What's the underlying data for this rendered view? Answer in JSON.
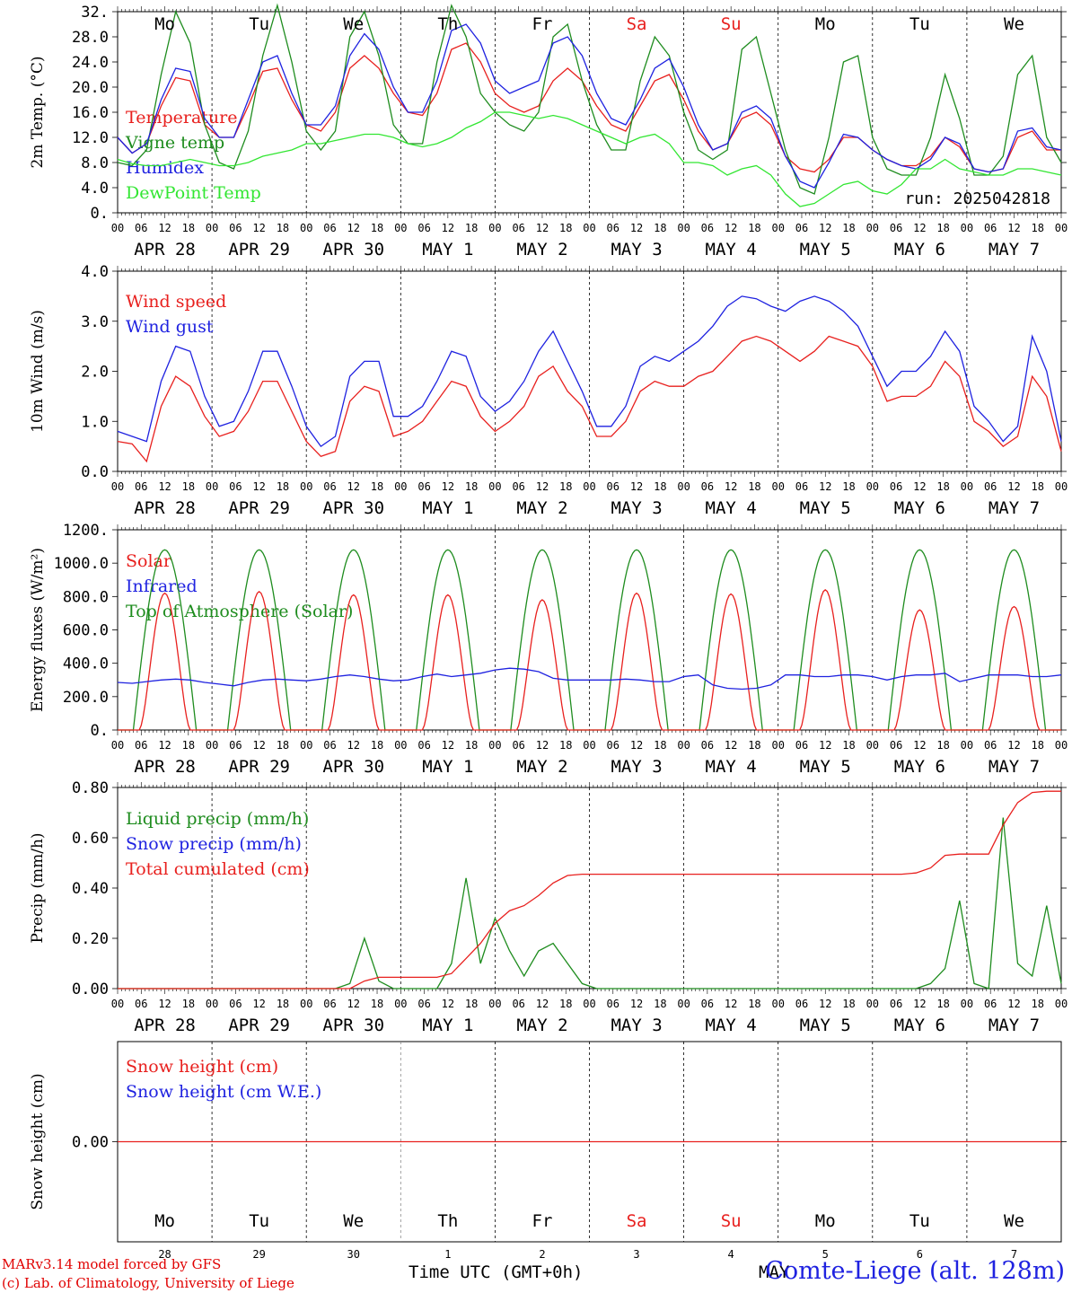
{
  "days": {
    "abbr": [
      "Mo",
      "Tu",
      "We",
      "Th",
      "Fr",
      "Sa",
      "Su",
      "Mo",
      "Tu",
      "We"
    ],
    "dates": [
      "APR 28",
      "APR 29",
      "APR 30",
      "MAY  1",
      "MAY  2",
      "MAY  3",
      "MAY  4",
      "MAY  5",
      "MAY  6",
      "MAY  7"
    ],
    "day_numbers": [
      "28",
      "29",
      "30",
      "1",
      "2",
      "3",
      "4",
      "5",
      "6",
      "7"
    ],
    "hour_ticks": [
      "00",
      "06",
      "12",
      "18"
    ],
    "final_tick": "00",
    "weekend_color": "#e8201e",
    "weekday_color": "#000000",
    "weekend_indices": [
      5,
      6
    ]
  },
  "footer": {
    "model_line": "MARv3.14 model forced by GFS",
    "credit_line": "(c) Lab. of Climatology, University of Liege",
    "x_title": "Time UTC (GMT+0h)",
    "month_word": "MAY",
    "station": "Comte-Liege (alt. 128m)"
  },
  "chart_data": [
    {
      "type": "line",
      "ylabel": "2m Temp. (°C)",
      "yticks": [
        "0.",
        "4.0",
        "8.0",
        "12.0",
        "16.0",
        "20.0",
        "24.0",
        "28.0",
        "32."
      ],
      "ylim": [
        0,
        32
      ],
      "annotation": "run: 2025042818",
      "legend_placement": "left",
      "series": [
        {
          "name": "Temperature",
          "color": "#e8201e",
          "values": [
            12,
            9.5,
            11,
            17,
            21.5,
            21,
            14,
            12,
            12,
            17,
            22.5,
            23,
            18,
            14,
            13,
            16,
            23,
            25,
            23,
            19,
            16,
            15.5,
            19,
            26,
            27,
            24,
            19,
            17,
            16,
            17,
            21,
            23,
            21,
            17,
            14,
            13,
            17,
            21,
            22,
            18,
            13,
            10,
            11,
            15,
            16,
            14,
            9,
            7,
            6.5,
            8.5,
            12,
            12,
            10,
            8.5,
            7.5,
            7.5,
            9,
            12,
            10.5,
            7,
            6.5,
            7,
            12,
            13,
            10,
            10
          ]
        },
        {
          "name": "Vigne temp",
          "color": "#1e8c1e",
          "values": [
            8,
            7.5,
            10,
            22,
            32,
            27,
            14,
            8,
            7,
            13,
            25,
            33,
            24,
            13,
            10,
            13,
            28,
            32,
            25,
            14,
            11,
            11,
            24,
            33,
            28,
            19,
            16,
            14,
            13,
            16,
            28,
            30,
            21,
            14,
            10,
            10,
            21,
            28,
            25,
            16,
            10,
            8.5,
            10,
            26,
            28,
            19,
            10,
            4,
            3,
            12,
            24,
            25,
            12,
            7,
            6,
            6,
            12,
            22,
            15,
            6,
            6,
            9,
            22,
            25,
            12,
            8
          ]
        },
        {
          "name": "Humidex",
          "color": "#1f22e0",
          "values": [
            12,
            9.5,
            11,
            18,
            23,
            22.5,
            15,
            12,
            12,
            18,
            24,
            25,
            19,
            14,
            14,
            17,
            25,
            28.5,
            26,
            20,
            16,
            16,
            21,
            29,
            30,
            27,
            21,
            19,
            20,
            21,
            27,
            28,
            25,
            19,
            15,
            14,
            18,
            23,
            24.5,
            20,
            14,
            10,
            11,
            16,
            17,
            15,
            9,
            5,
            4,
            8,
            12.5,
            12,
            10,
            8.5,
            7.5,
            7,
            8.5,
            12,
            11,
            7,
            6.5,
            7,
            13,
            13.5,
            10.5,
            10
          ]
        },
        {
          "name": "DewPoint Temp",
          "color": "#32e632",
          "values": [
            8.5,
            7.8,
            7.5,
            7.5,
            8,
            8.5,
            8,
            7.5,
            7.5,
            8,
            9,
            9.5,
            10,
            11,
            11,
            11.5,
            12,
            12.5,
            12.5,
            12,
            11,
            10.5,
            11,
            12,
            13.5,
            14.5,
            16,
            16,
            15.5,
            15,
            15.5,
            15,
            14,
            13,
            12,
            11,
            12,
            12.5,
            11,
            8,
            8,
            7.5,
            6,
            7,
            7.5,
            6,
            3,
            1,
            1.5,
            3,
            4.5,
            5,
            3.5,
            3,
            4.5,
            7,
            7,
            8.5,
            7,
            6.5,
            6,
            6,
            7,
            7,
            6.5,
            6
          ]
        }
      ]
    },
    {
      "type": "line",
      "ylabel": "10m Wind (m/s)",
      "yticks": [
        "0.0",
        "1.0",
        "2.0",
        "3.0",
        "4.0"
      ],
      "ylim": [
        0,
        4
      ],
      "legend_placement": "left",
      "series": [
        {
          "name": "Wind speed",
          "color": "#e8201e",
          "values": [
            0.6,
            0.55,
            0.2,
            1.3,
            1.9,
            1.7,
            1.1,
            0.7,
            0.8,
            1.2,
            1.8,
            1.8,
            1.2,
            0.6,
            0.3,
            0.4,
            1.4,
            1.7,
            1.6,
            0.7,
            0.8,
            1.0,
            1.4,
            1.8,
            1.7,
            1.1,
            0.8,
            1.0,
            1.3,
            1.9,
            2.1,
            1.6,
            1.3,
            0.7,
            0.7,
            1.0,
            1.6,
            1.8,
            1.7,
            1.7,
            1.9,
            2.0,
            2.3,
            2.6,
            2.7,
            2.6,
            2.4,
            2.2,
            2.4,
            2.7,
            2.6,
            2.5,
            2.1,
            1.4,
            1.5,
            1.5,
            1.7,
            2.2,
            1.9,
            1.0,
            0.8,
            0.5,
            0.7,
            1.9,
            1.5,
            0.4
          ]
        },
        {
          "name": "Wind gust",
          "color": "#1f22e0",
          "values": [
            0.8,
            0.7,
            0.6,
            1.8,
            2.5,
            2.4,
            1.5,
            0.9,
            1.0,
            1.6,
            2.4,
            2.4,
            1.7,
            0.9,
            0.5,
            0.7,
            1.9,
            2.2,
            2.2,
            1.1,
            1.1,
            1.3,
            1.8,
            2.4,
            2.3,
            1.5,
            1.2,
            1.4,
            1.8,
            2.4,
            2.8,
            2.2,
            1.6,
            0.9,
            0.9,
            1.3,
            2.1,
            2.3,
            2.2,
            2.4,
            2.6,
            2.9,
            3.3,
            3.5,
            3.45,
            3.3,
            3.2,
            3.4,
            3.5,
            3.4,
            3.2,
            2.9,
            2.3,
            1.7,
            2.0,
            2.0,
            2.3,
            2.8,
            2.4,
            1.3,
            1.0,
            0.6,
            0.9,
            2.7,
            2.0,
            0.6
          ]
        }
      ]
    },
    {
      "type": "line",
      "ylabel": "Energy fluxes (W/m²)",
      "yticks": [
        "0.",
        "200.0",
        "400.0",
        "600.0",
        "800.0",
        "1000.0",
        "1200."
      ],
      "ylim": [
        0,
        1200
      ],
      "legend_placement": "left",
      "series": [
        {
          "name": "Solar",
          "color": "#e8201e",
          "peaks": [
            820,
            830,
            810,
            810,
            780,
            820,
            815,
            840,
            720,
            740
          ]
        },
        {
          "name": "Infrared",
          "color": "#1f22e0",
          "values": [
            285,
            280,
            290,
            300,
            305,
            300,
            285,
            275,
            265,
            285,
            300,
            305,
            300,
            295,
            305,
            320,
            330,
            320,
            305,
            295,
            300,
            320,
            335,
            320,
            330,
            340,
            360,
            370,
            365,
            350,
            310,
            300,
            300,
            300,
            300,
            305,
            300,
            290,
            290,
            320,
            330,
            270,
            250,
            245,
            250,
            270,
            330,
            330,
            320,
            320,
            330,
            330,
            320,
            300,
            320,
            330,
            330,
            340,
            290,
            310,
            330,
            330,
            330,
            320,
            320,
            330
          ]
        },
        {
          "name": "Top of Atmosphere (Solar)",
          "color": "#1e8c1e",
          "peak": 1080
        }
      ]
    },
    {
      "type": "line",
      "ylabel": "Precip (mm/h)",
      "yticks": [
        "0.00",
        "0.20",
        "0.40",
        "0.60",
        "0.80"
      ],
      "ylim": [
        0,
        0.8
      ],
      "legend_placement": "left",
      "series": [
        {
          "name": "Liquid precip (mm/h)",
          "color": "#1e8c1e",
          "values": [
            0,
            0,
            0,
            0,
            0,
            0,
            0,
            0,
            0,
            0,
            0,
            0,
            0,
            0,
            0,
            0,
            0.02,
            0.2,
            0.03,
            0,
            0,
            0,
            0,
            0.1,
            0.44,
            0.1,
            0.28,
            0.15,
            0.05,
            0.15,
            0.18,
            0.1,
            0.02,
            0,
            0,
            0,
            0,
            0,
            0,
            0,
            0,
            0,
            0,
            0,
            0,
            0,
            0,
            0,
            0,
            0,
            0,
            0,
            0,
            0,
            0,
            0,
            0.02,
            0.08,
            0.35,
            0.02,
            0,
            0.68,
            0.1,
            0.05,
            0.33,
            0.02
          ]
        },
        {
          "name": "Snow precip (mm/h)",
          "color": "#1f22e0",
          "values": []
        },
        {
          "name": "Total cumulated (cm)",
          "color": "#e8201e",
          "values": [
            0,
            0,
            0,
            0,
            0,
            0,
            0,
            0,
            0,
            0,
            0,
            0,
            0,
            0,
            0,
            0,
            0,
            0.03,
            0.045,
            0.045,
            0.045,
            0.045,
            0.045,
            0.06,
            0.12,
            0.18,
            0.26,
            0.31,
            0.33,
            0.37,
            0.42,
            0.45,
            0.455,
            0.455,
            0.455,
            0.455,
            0.455,
            0.455,
            0.455,
            0.455,
            0.455,
            0.455,
            0.455,
            0.455,
            0.455,
            0.455,
            0.455,
            0.455,
            0.455,
            0.455,
            0.455,
            0.455,
            0.455,
            0.455,
            0.455,
            0.46,
            0.48,
            0.53,
            0.535,
            0.535,
            0.535,
            0.65,
            0.74,
            0.78,
            0.785,
            0.785
          ]
        }
      ]
    },
    {
      "type": "line",
      "ylabel": "Snow height (cm)",
      "yticks": [
        "0.00"
      ],
      "ylim": [
        -1,
        1
      ],
      "legend_placement": "left",
      "series": [
        {
          "name": "Snow height (cm)",
          "color": "#e8201e",
          "values": [
            0,
            0
          ]
        },
        {
          "name": "Snow height (cm W.E.)",
          "color": "#1f22e0",
          "values": []
        }
      ]
    }
  ]
}
